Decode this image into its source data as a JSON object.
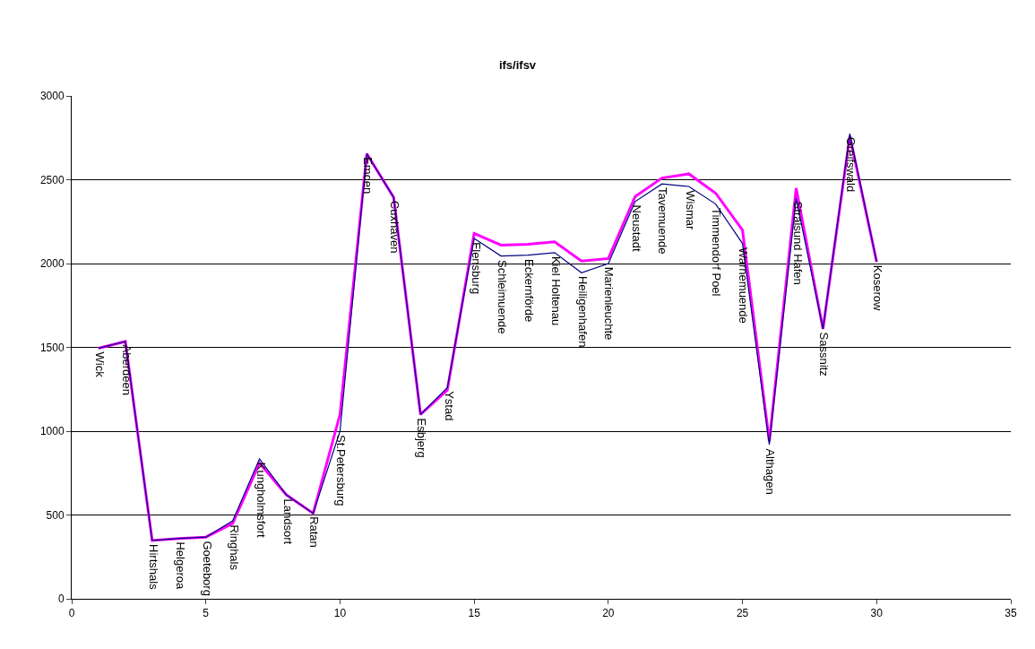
{
  "chart_data": {
    "type": "line",
    "title": "ifs/ifsv",
    "x": [
      1,
      2,
      3,
      4,
      5,
      6,
      7,
      8,
      9,
      10,
      11,
      12,
      13,
      14,
      15,
      16,
      17,
      18,
      19,
      20,
      21,
      22,
      23,
      24,
      25,
      26,
      27,
      28,
      29,
      30
    ],
    "series": [
      {
        "color": "#000080",
        "values": [
          1495,
          1535,
          348,
          360,
          368,
          465,
          835,
          620,
          510,
          1000,
          2655,
          2395,
          1100,
          1260,
          2150,
          2045,
          2050,
          2065,
          1945,
          2000,
          2370,
          2475,
          2460,
          2355,
          2120,
          920,
          2390,
          1610,
          2775,
          2010
        ]
      },
      {
        "color": "#ff00ff",
        "values": [
          1495,
          1535,
          348,
          360,
          368,
          450,
          810,
          620,
          510,
          1100,
          2655,
          2395,
          1100,
          1245,
          2180,
          2110,
          2115,
          2130,
          2015,
          2030,
          2400,
          2510,
          2535,
          2420,
          2200,
          940,
          2450,
          1610,
          2760,
          2010
        ]
      }
    ],
    "annotations": [
      {
        "text": "Wick",
        "x": 1,
        "y": 1495
      },
      {
        "text": "Aberdeen",
        "x": 2,
        "y": 1535
      },
      {
        "text": "Hirtshals",
        "x": 3,
        "y": 348
      },
      {
        "text": "Helgeroa",
        "x": 4,
        "y": 360
      },
      {
        "text": "Goeteborg",
        "x": 5,
        "y": 368
      },
      {
        "text": "Ringhals",
        "x": 6,
        "y": 465
      },
      {
        "text": "Kungholmsfort",
        "x": 7,
        "y": 835
      },
      {
        "text": "Landsort",
        "x": 8,
        "y": 620
      },
      {
        "text": "Ratan",
        "x": 9,
        "y": 510
      },
      {
        "text": "St.Petersburg",
        "x": 10,
        "y": 1000
      },
      {
        "text": "Emden",
        "x": 11,
        "y": 2655
      },
      {
        "text": "Cuxhaven",
        "x": 12,
        "y": 2395
      },
      {
        "text": "Esbjerg",
        "x": 13,
        "y": 1100
      },
      {
        "text": "Ystad",
        "x": 14,
        "y": 1260
      },
      {
        "text": "Flensburg",
        "x": 15,
        "y": 2150
      },
      {
        "text": "Schleimuende",
        "x": 16,
        "y": 2045
      },
      {
        "text": "Eckernförde",
        "x": 17,
        "y": 2050
      },
      {
        "text": "Kiel Holtenau",
        "x": 18,
        "y": 2065
      },
      {
        "text": "Heiligenhafen",
        "x": 19,
        "y": 1945
      },
      {
        "text": "Marienleuchte",
        "x": 20,
        "y": 2000
      },
      {
        "text": "Neustadt",
        "x": 21,
        "y": 2370
      },
      {
        "text": "Tavemuende",
        "x": 22,
        "y": 2475
      },
      {
        "text": "Wismar",
        "x": 23,
        "y": 2460
      },
      {
        "text": "Timmendorf Poel",
        "x": 24,
        "y": 2355
      },
      {
        "text": "Warnemuende",
        "x": 25,
        "y": 2120
      },
      {
        "text": "Althagen",
        "x": 26,
        "y": 920
      },
      {
        "text": "Stralsund Hafen",
        "x": 27,
        "y": 2390
      },
      {
        "text": "Sassnitz",
        "x": 28,
        "y": 1610
      },
      {
        "text": "Greifswald",
        "x": 29,
        "y": 2775
      },
      {
        "text": "Koserow",
        "x": 30,
        "y": 2010
      }
    ],
    "xlim": [
      0,
      35
    ],
    "xticks": [
      0,
      5,
      10,
      15,
      20,
      25,
      30,
      35
    ],
    "ylim": [
      0,
      3000
    ],
    "yticks": [
      0,
      500,
      1000,
      1500,
      2000,
      2500,
      3000
    ],
    "grid": "y",
    "marker": "none",
    "line_style": "solid"
  }
}
